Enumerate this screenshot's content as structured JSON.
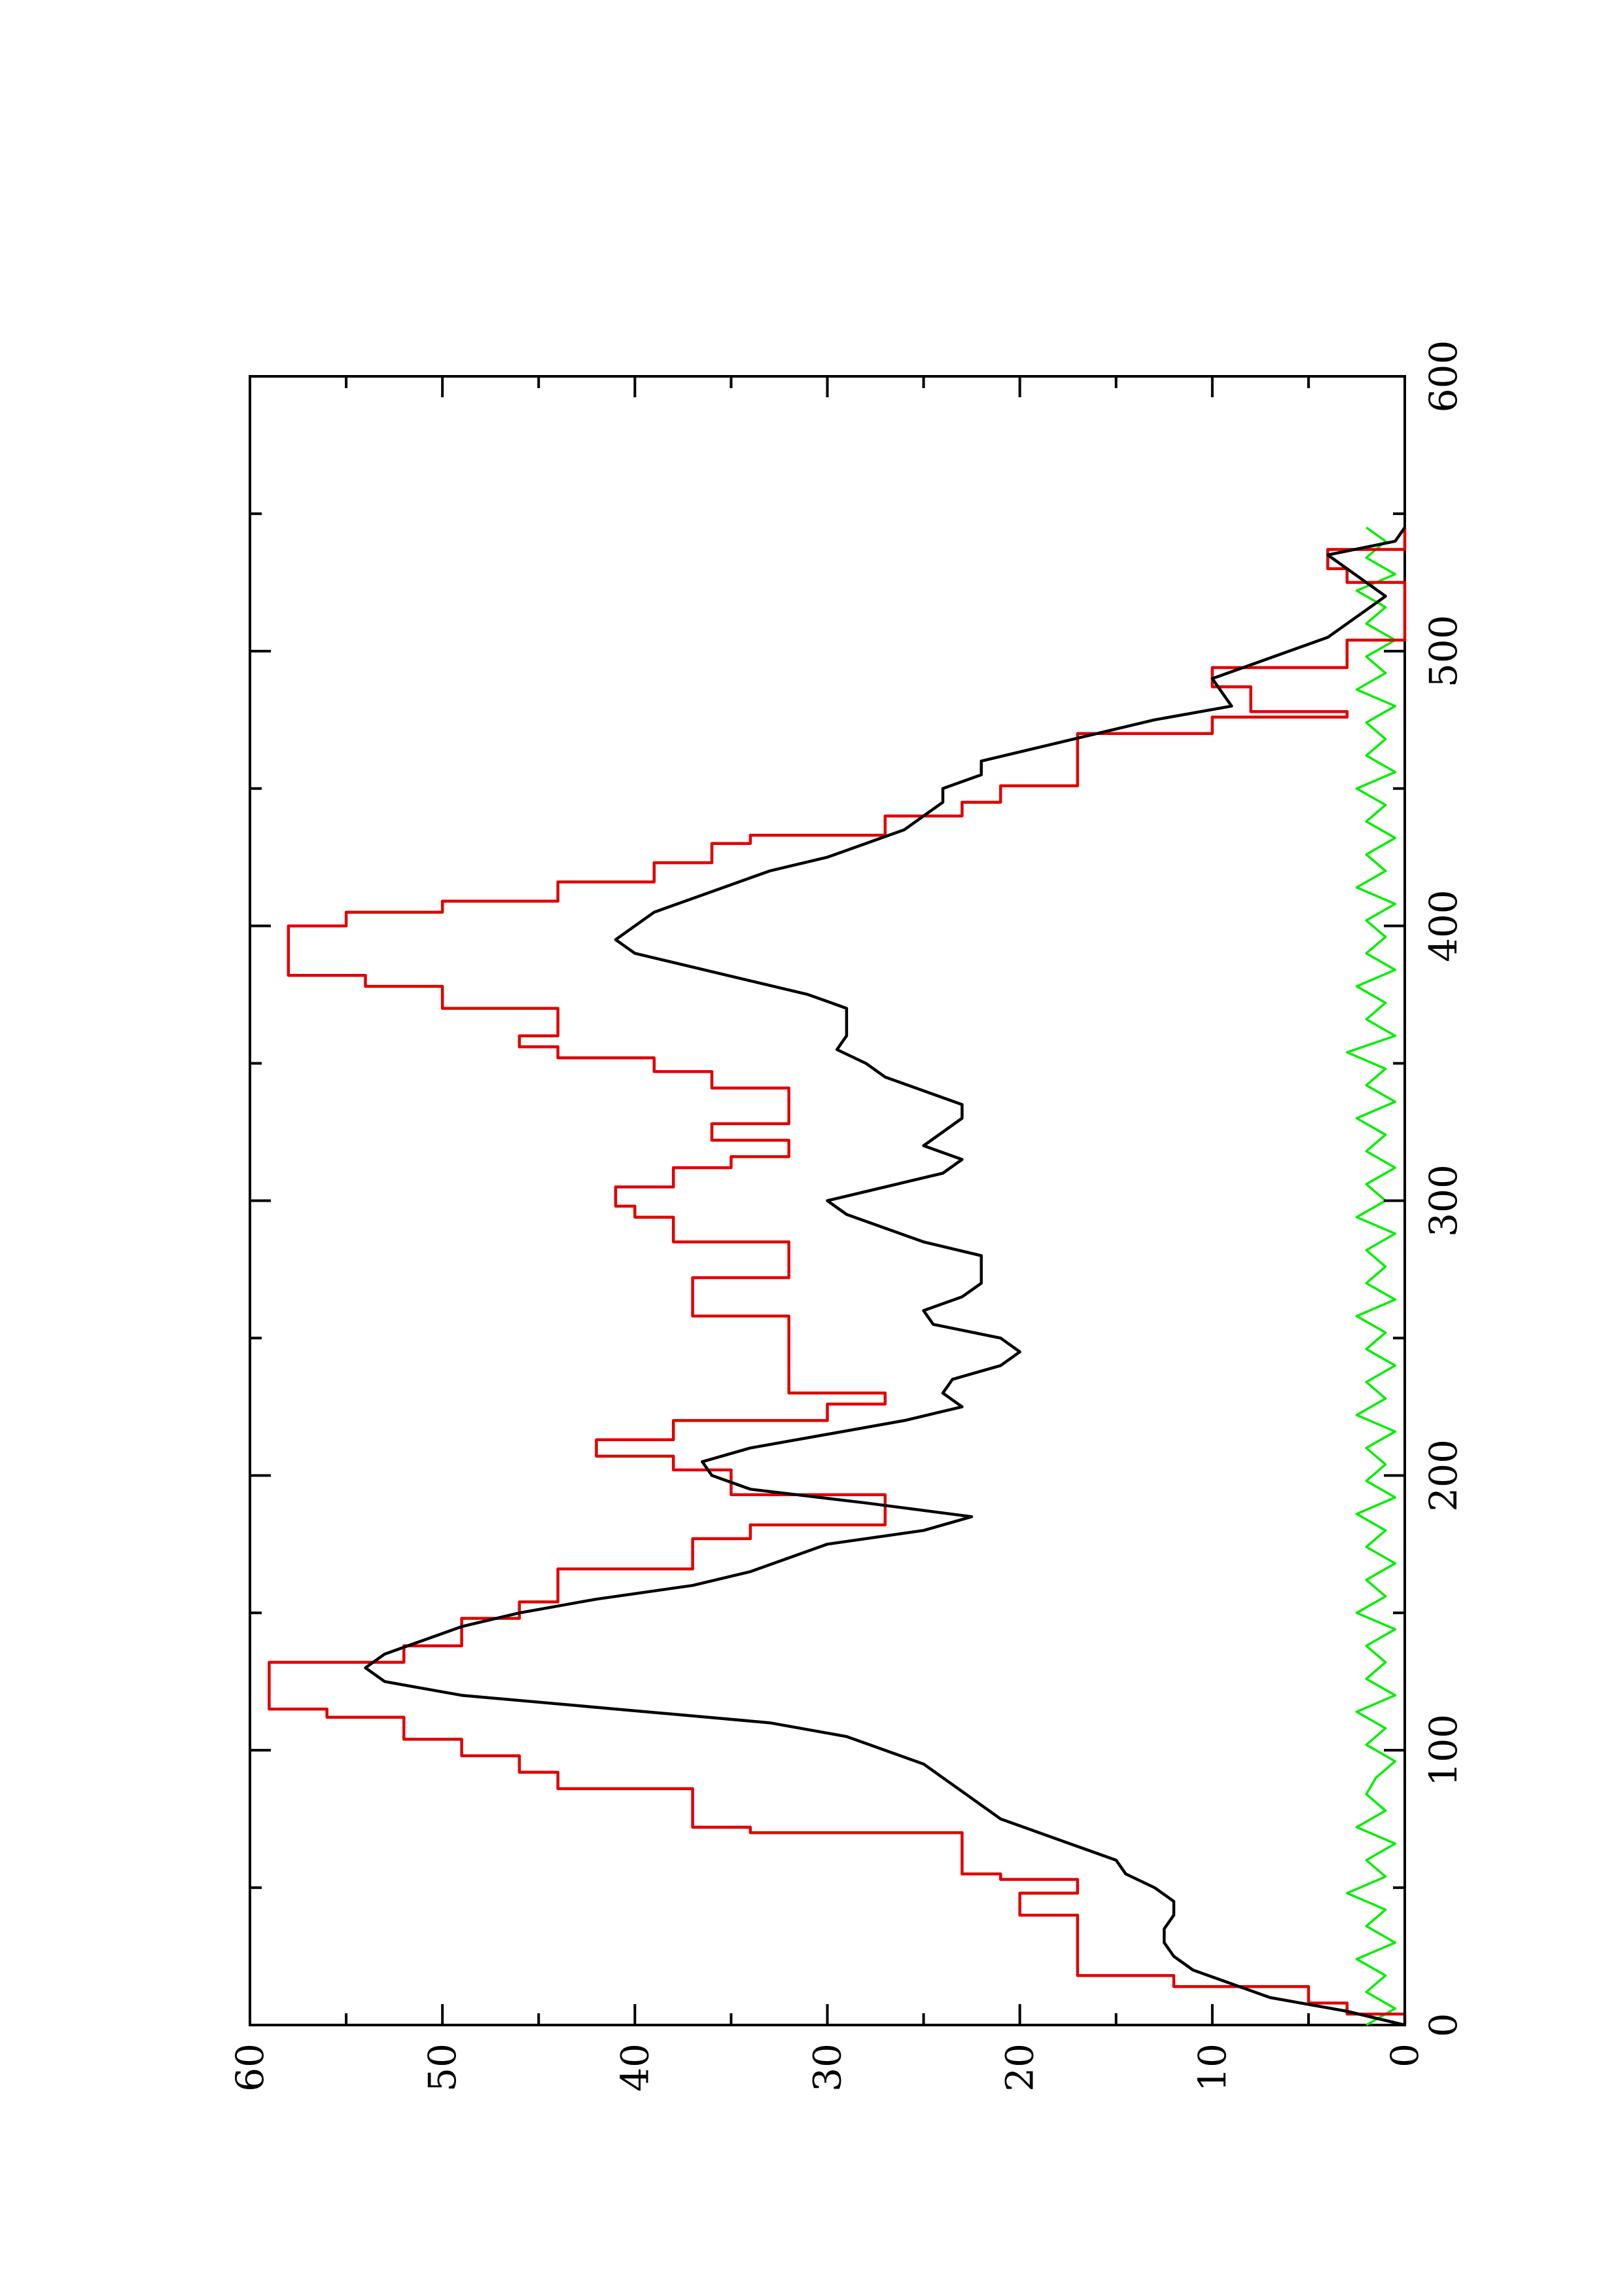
{
  "chart_data": {
    "type": "line",
    "orientation": "rotated-90-counterclockwise",
    "title": "",
    "xlabel": "",
    "ylabel": "",
    "xlim": [
      0,
      600
    ],
    "ylim": [
      0,
      60
    ],
    "x_ticks": [
      0,
      100,
      200,
      300,
      400,
      500,
      600
    ],
    "x_tick_labels": [
      "0",
      "100",
      "200",
      "300",
      "400",
      "500",
      "600"
    ],
    "x_minor_ticks": [
      50,
      150,
      250,
      350,
      450,
      550
    ],
    "y_ticks": [
      0,
      10,
      20,
      30,
      40,
      50,
      60
    ],
    "y_tick_labels": [
      "0",
      "10",
      "20",
      "30",
      "40",
      "50",
      "60"
    ],
    "y_minor_ticks": [
      5,
      15,
      25,
      35,
      45,
      55
    ],
    "grid": false,
    "legend": "none",
    "series": [
      {
        "color": "#000000",
        "style": "smooth",
        "points": [
          [
            0,
            0
          ],
          [
            5,
            3
          ],
          [
            10,
            7
          ],
          [
            15,
            9
          ],
          [
            20,
            11
          ],
          [
            25,
            12
          ],
          [
            30,
            12.5
          ],
          [
            35,
            12.5
          ],
          [
            40,
            12
          ],
          [
            45,
            12
          ],
          [
            50,
            13
          ],
          [
            55,
            14.5
          ],
          [
            60,
            15
          ],
          [
            65,
            17
          ],
          [
            70,
            19
          ],
          [
            75,
            21
          ],
          [
            80,
            22
          ],
          [
            85,
            23
          ],
          [
            90,
            24
          ],
          [
            95,
            25
          ],
          [
            100,
            27
          ],
          [
            105,
            29
          ],
          [
            110,
            33
          ],
          [
            115,
            41
          ],
          [
            120,
            49
          ],
          [
            125,
            53
          ],
          [
            130,
            54
          ],
          [
            135,
            53
          ],
          [
            140,
            51
          ],
          [
            145,
            49
          ],
          [
            150,
            46
          ],
          [
            155,
            42
          ],
          [
            160,
            37
          ],
          [
            165,
            34
          ],
          [
            170,
            32
          ],
          [
            175,
            30
          ],
          [
            180,
            25
          ],
          [
            185,
            22.5
          ],
          [
            190,
            28
          ],
          [
            195,
            34
          ],
          [
            200,
            36
          ],
          [
            205,
            36.5
          ],
          [
            210,
            34
          ],
          [
            215,
            30
          ],
          [
            220,
            26
          ],
          [
            225,
            23
          ],
          [
            230,
            24
          ],
          [
            235,
            23.5
          ],
          [
            240,
            21
          ],
          [
            245,
            20
          ],
          [
            250,
            21
          ],
          [
            255,
            24.5
          ],
          [
            260,
            25
          ],
          [
            265,
            23
          ],
          [
            270,
            22
          ],
          [
            275,
            22
          ],
          [
            280,
            22
          ],
          [
            285,
            25
          ],
          [
            290,
            27
          ],
          [
            295,
            29
          ],
          [
            300,
            30
          ],
          [
            305,
            27
          ],
          [
            310,
            24
          ],
          [
            315,
            23
          ],
          [
            320,
            25
          ],
          [
            325,
            24
          ],
          [
            330,
            23
          ],
          [
            335,
            23
          ],
          [
            340,
            25
          ],
          [
            345,
            27
          ],
          [
            350,
            28
          ],
          [
            355,
            29.5
          ],
          [
            360,
            29
          ],
          [
            365,
            29
          ],
          [
            370,
            29
          ],
          [
            375,
            31
          ],
          [
            380,
            34
          ],
          [
            385,
            37
          ],
          [
            390,
            40
          ],
          [
            395,
            41
          ],
          [
            400,
            40
          ],
          [
            405,
            39
          ],
          [
            410,
            37
          ],
          [
            415,
            35
          ],
          [
            420,
            33
          ],
          [
            425,
            30
          ],
          [
            430,
            28
          ],
          [
            435,
            26
          ],
          [
            440,
            25
          ],
          [
            445,
            24
          ],
          [
            450,
            24
          ],
          [
            455,
            22
          ],
          [
            460,
            22
          ],
          [
            465,
            19
          ],
          [
            470,
            16
          ],
          [
            475,
            13
          ],
          [
            480,
            9
          ],
          [
            485,
            9.5
          ],
          [
            490,
            10
          ],
          [
            495,
            8
          ],
          [
            500,
            6
          ],
          [
            505,
            4
          ],
          [
            510,
            3
          ],
          [
            515,
            2
          ],
          [
            520,
            1
          ],
          [
            525,
            2
          ],
          [
            530,
            3
          ],
          [
            535,
            4
          ],
          [
            540,
            0.5
          ],
          [
            545,
            0
          ]
        ]
      },
      {
        "color": "#e00000",
        "style": "steps",
        "points": [
          [
            0,
            0
          ],
          [
            4,
            3
          ],
          [
            8,
            5
          ],
          [
            14,
            12
          ],
          [
            18,
            17
          ],
          [
            38,
            17
          ],
          [
            40,
            20
          ],
          [
            46,
            20
          ],
          [
            48,
            17
          ],
          [
            50,
            17
          ],
          [
            53,
            21
          ],
          [
            55,
            23
          ],
          [
            60,
            23
          ],
          [
            70,
            34
          ],
          [
            72,
            37
          ],
          [
            84,
            37
          ],
          [
            86,
            44
          ],
          [
            92,
            46
          ],
          [
            98,
            49
          ],
          [
            104,
            52
          ],
          [
            112,
            56
          ],
          [
            115,
            59
          ],
          [
            125,
            59
          ],
          [
            132,
            52
          ],
          [
            138,
            49
          ],
          [
            148,
            46
          ],
          [
            154,
            44
          ],
          [
            166,
            37
          ],
          [
            177,
            34
          ],
          [
            182,
            27
          ],
          [
            186,
            27
          ],
          [
            193,
            35
          ],
          [
            202,
            38
          ],
          [
            207,
            42
          ],
          [
            213,
            38
          ],
          [
            220,
            30
          ],
          [
            226,
            27
          ],
          [
            230,
            32
          ],
          [
            240,
            32
          ],
          [
            254,
            32
          ],
          [
            258,
            37
          ],
          [
            265,
            37
          ],
          [
            272,
            32
          ],
          [
            278,
            32
          ],
          [
            285,
            38
          ],
          [
            294,
            40
          ],
          [
            298,
            41
          ],
          [
            305,
            38
          ],
          [
            312,
            35
          ],
          [
            316,
            32
          ],
          [
            322,
            36
          ],
          [
            326,
            36
          ],
          [
            328,
            32
          ],
          [
            336,
            32
          ],
          [
            341,
            36
          ],
          [
            347,
            39
          ],
          [
            352,
            44
          ],
          [
            356,
            46
          ],
          [
            360,
            44
          ],
          [
            366,
            44
          ],
          [
            370,
            50
          ],
          [
            378,
            54
          ],
          [
            382,
            58
          ],
          [
            392,
            58
          ],
          [
            400,
            55
          ],
          [
            405,
            50
          ],
          [
            409,
            44
          ],
          [
            416,
            39
          ],
          [
            423,
            36
          ],
          [
            430,
            34
          ],
          [
            433,
            27
          ],
          [
            440,
            23
          ],
          [
            445,
            21
          ],
          [
            451,
            17
          ],
          [
            463,
            17
          ],
          [
            470,
            10
          ],
          [
            476,
            3
          ],
          [
            478,
            8
          ],
          [
            485,
            8
          ],
          [
            487,
            10
          ],
          [
            492,
            10
          ],
          [
            494,
            3
          ],
          [
            498,
            3
          ],
          [
            504,
            0
          ],
          [
            520,
            0
          ],
          [
            525,
            3
          ],
          [
            530,
            4
          ],
          [
            535,
            4
          ],
          [
            537,
            0
          ],
          [
            545,
            0
          ]
        ]
      },
      {
        "color": "#00ee00",
        "style": "noise",
        "points": [
          [
            0,
            2
          ],
          [
            6,
            0.5
          ],
          [
            12,
            2
          ],
          [
            18,
            1
          ],
          [
            24,
            2.5
          ],
          [
            30,
            0.5
          ],
          [
            36,
            2
          ],
          [
            42,
            1
          ],
          [
            48,
            3
          ],
          [
            54,
            1
          ],
          [
            60,
            2
          ],
          [
            66,
            0.5
          ],
          [
            72,
            2.5
          ],
          [
            78,
            1
          ],
          [
            84,
            2
          ],
          [
            90,
            1.5
          ],
          [
            96,
            0.5
          ],
          [
            102,
            2
          ],
          [
            108,
            1
          ],
          [
            114,
            2.5
          ],
          [
            120,
            0.5
          ],
          [
            126,
            2
          ],
          [
            132,
            1
          ],
          [
            138,
            2
          ],
          [
            144,
            0.5
          ],
          [
            150,
            2.5
          ],
          [
            156,
            1
          ],
          [
            162,
            2
          ],
          [
            168,
            0.5
          ],
          [
            174,
            2
          ],
          [
            180,
            1
          ],
          [
            186,
            2.5
          ],
          [
            192,
            0.5
          ],
          [
            198,
            2
          ],
          [
            204,
            1
          ],
          [
            210,
            2
          ],
          [
            216,
            0.5
          ],
          [
            222,
            2.5
          ],
          [
            228,
            1
          ],
          [
            234,
            2
          ],
          [
            240,
            0.5
          ],
          [
            246,
            2
          ],
          [
            252,
            1
          ],
          [
            258,
            2.5
          ],
          [
            264,
            0.5
          ],
          [
            270,
            2
          ],
          [
            276,
            1
          ],
          [
            282,
            2
          ],
          [
            288,
            0.5
          ],
          [
            294,
            2.5
          ],
          [
            300,
            1
          ],
          [
            306,
            2
          ],
          [
            312,
            0.5
          ],
          [
            318,
            2
          ],
          [
            324,
            1
          ],
          [
            330,
            2.5
          ],
          [
            336,
            0.5
          ],
          [
            342,
            2
          ],
          [
            348,
            1
          ],
          [
            354,
            3
          ],
          [
            360,
            0.5
          ],
          [
            366,
            2
          ],
          [
            372,
            1
          ],
          [
            378,
            2.5
          ],
          [
            384,
            0.5
          ],
          [
            390,
            2
          ],
          [
            396,
            1
          ],
          [
            402,
            2
          ],
          [
            408,
            0.5
          ],
          [
            414,
            2.5
          ],
          [
            420,
            1
          ],
          [
            426,
            2
          ],
          [
            432,
            0.5
          ],
          [
            438,
            2
          ],
          [
            444,
            1
          ],
          [
            450,
            2.5
          ],
          [
            456,
            0.5
          ],
          [
            462,
            2
          ],
          [
            468,
            1
          ],
          [
            474,
            2
          ],
          [
            480,
            0.5
          ],
          [
            486,
            2.5
          ],
          [
            492,
            1
          ],
          [
            498,
            2
          ],
          [
            504,
            0.5
          ],
          [
            510,
            2
          ],
          [
            516,
            1
          ],
          [
            522,
            2.5
          ],
          [
            528,
            0.5
          ],
          [
            534,
            2
          ],
          [
            540,
            1
          ],
          [
            545,
            2
          ]
        ]
      }
    ]
  }
}
